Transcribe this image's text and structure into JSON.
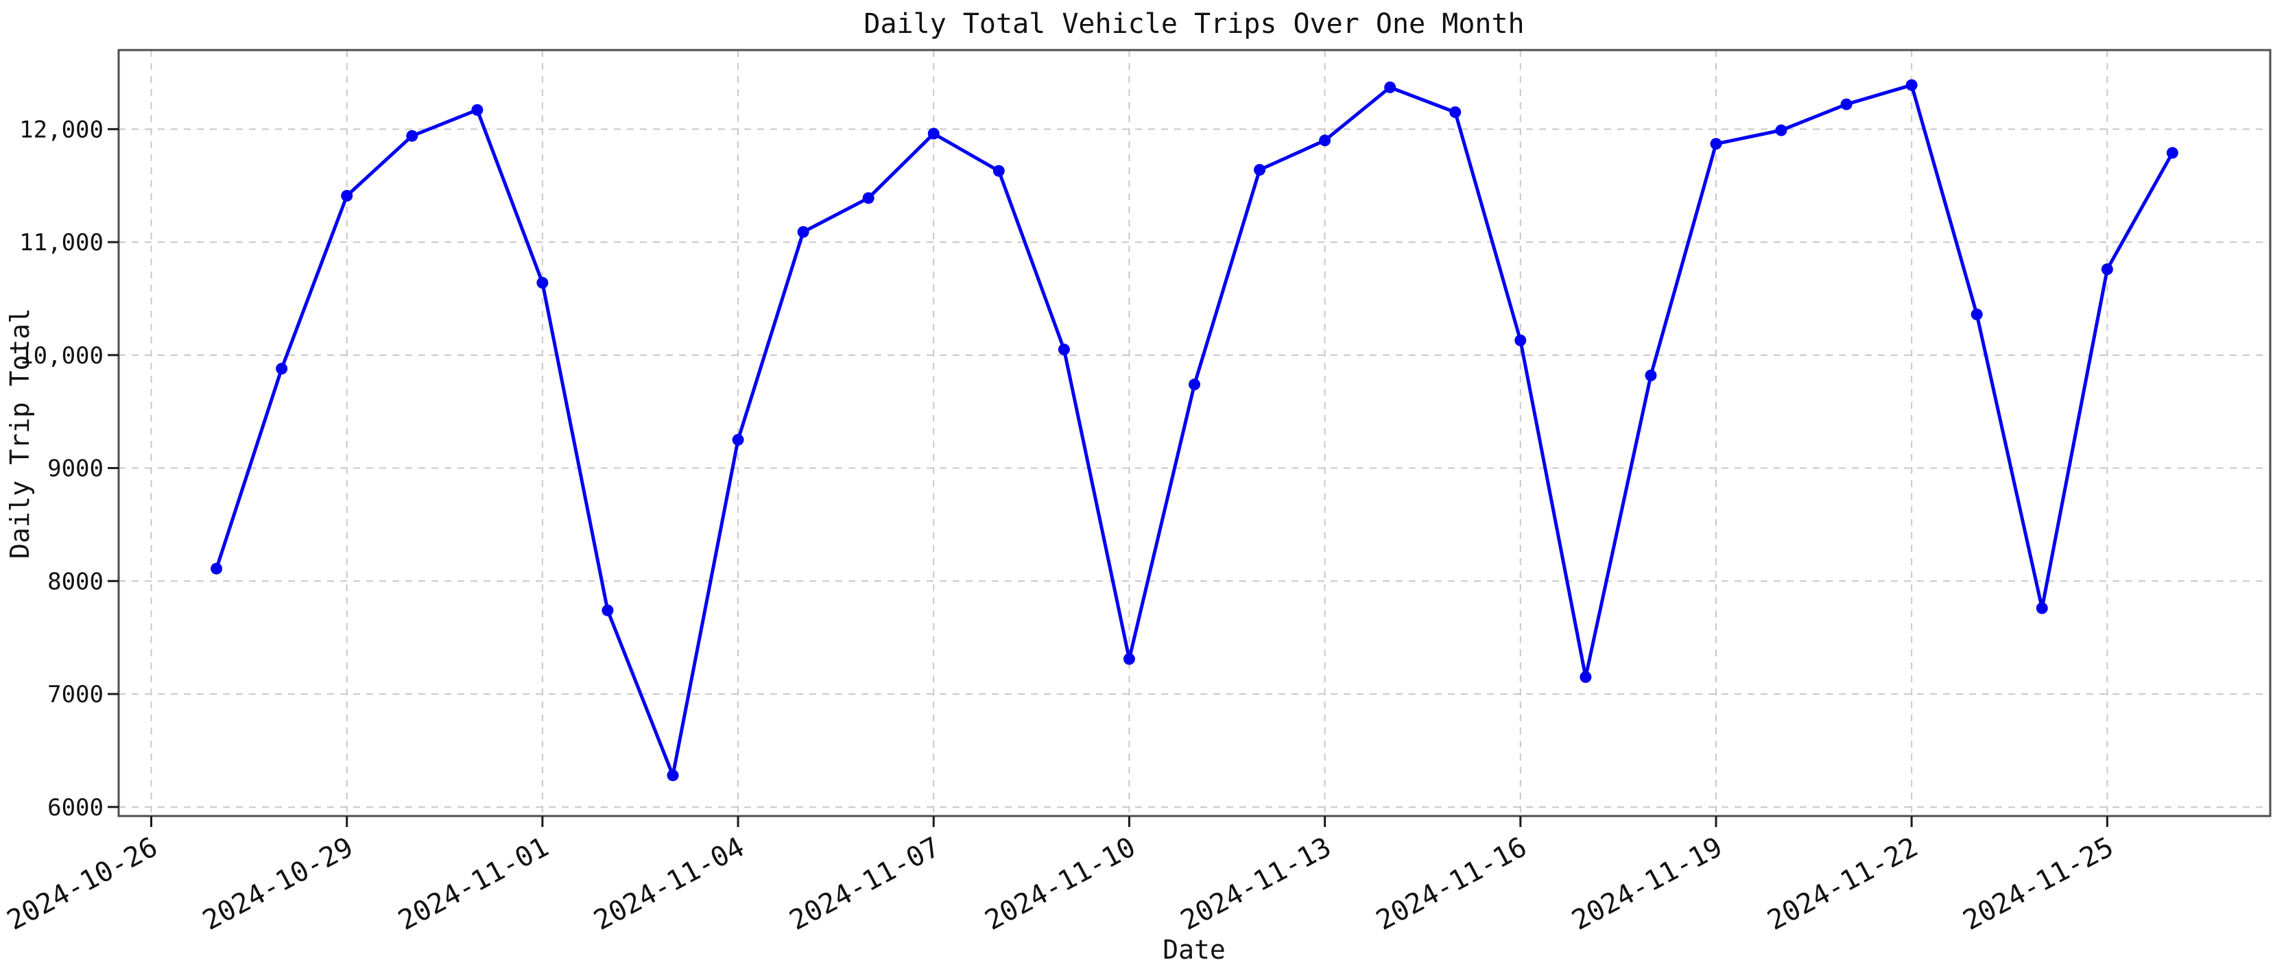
{
  "figure": {
    "title": "Daily Total Vehicle Trips Over One Month",
    "xlabel": "Date",
    "ylabel": "Daily Trip Total"
  },
  "chart_data": {
    "type": "line",
    "title": "Daily Total Vehicle Trips Over One Month",
    "xlabel": "Date",
    "ylabel": "Daily Trip Total",
    "legend_position": "none",
    "grid": true,
    "background": "#ffffff",
    "grid_color": "#c8c8c8",
    "spine_color": "#4d4d4d",
    "tick_color": "#1a1a1a",
    "line_color": "#0000f0",
    "marker": "circle",
    "ylim": [
      5920,
      12700
    ],
    "xlim_index": [
      -1.5,
      31.5
    ],
    "x": [
      "2024-10-27",
      "2024-10-28",
      "2024-10-29",
      "2024-10-30",
      "2024-10-31",
      "2024-11-01",
      "2024-11-02",
      "2024-11-03",
      "2024-11-04",
      "2024-11-05",
      "2024-11-06",
      "2024-11-07",
      "2024-11-08",
      "2024-11-09",
      "2024-11-10",
      "2024-11-11",
      "2024-11-12",
      "2024-11-13",
      "2024-11-14",
      "2024-11-15",
      "2024-11-16",
      "2024-11-17",
      "2024-11-18",
      "2024-11-19",
      "2024-11-20",
      "2024-11-21",
      "2024-11-22",
      "2024-11-23",
      "2024-11-24",
      "2024-11-25",
      "2024-11-26"
    ],
    "values": [
      8110,
      9880,
      11410,
      11940,
      12170,
      10640,
      7740,
      6280,
      9250,
      11090,
      11390,
      11960,
      11630,
      10050,
      7310,
      9740,
      11640,
      11900,
      12370,
      12150,
      10130,
      7150,
      9820,
      11870,
      11990,
      12220,
      12390,
      10360,
      7760,
      10760,
      11790
    ],
    "series": [
      {
        "name": "Daily Trip Total",
        "color": "#0000f0"
      }
    ],
    "x_ticks": [
      {
        "index": -1,
        "label": "2024-10-26"
      },
      {
        "index": 2,
        "label": "2024-10-29"
      },
      {
        "index": 5,
        "label": "2024-11-01"
      },
      {
        "index": 8,
        "label": "2024-11-04"
      },
      {
        "index": 11,
        "label": "2024-11-07"
      },
      {
        "index": 14,
        "label": "2024-11-10"
      },
      {
        "index": 17,
        "label": "2024-11-13"
      },
      {
        "index": 20,
        "label": "2024-11-16"
      },
      {
        "index": 23,
        "label": "2024-11-19"
      },
      {
        "index": 26,
        "label": "2024-11-22"
      },
      {
        "index": 29,
        "label": "2024-11-25"
      }
    ],
    "y_ticks": [
      {
        "value": 6000,
        "label": "6000"
      },
      {
        "value": 7000,
        "label": "7000"
      },
      {
        "value": 8000,
        "label": "8000"
      },
      {
        "value": 9000,
        "label": "9000"
      },
      {
        "value": 10000,
        "label": "10,000"
      },
      {
        "value": 11000,
        "label": "11,000"
      },
      {
        "value": 12000,
        "label": "12,000"
      }
    ]
  }
}
